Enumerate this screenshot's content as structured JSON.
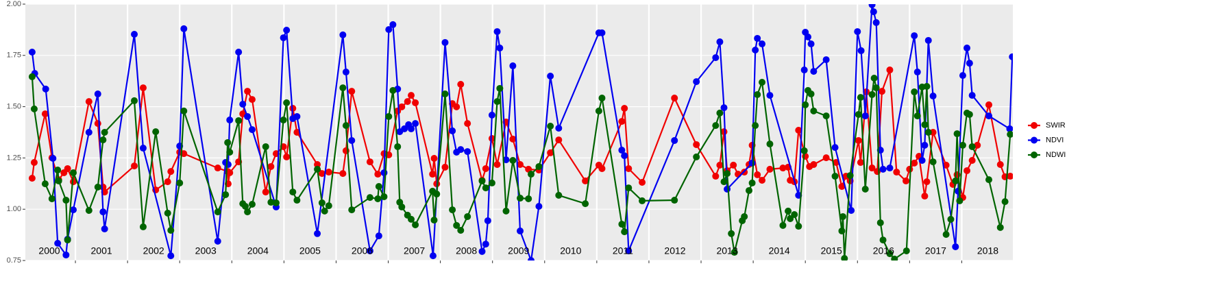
{
  "chart_data": {
    "type": "line",
    "xlim": [
      2000.04,
      2018.98
    ],
    "xticks": [
      2001,
      2002,
      2003,
      2004,
      2005,
      2006,
      2007,
      2008,
      2009,
      2010,
      2011,
      2012,
      2013,
      2014,
      2015,
      2016,
      2017,
      2018
    ],
    "year_labels": [
      "2000",
      "2001",
      "2002",
      "2003",
      "2004",
      "2005",
      "2006",
      "2007",
      "2008",
      "2009",
      "2010",
      "2011",
      "2012",
      "2013",
      "2014",
      "2015",
      "2016",
      "2017",
      "2018"
    ],
    "ylim": [
      0.75,
      2.0
    ],
    "yticks": [
      0.75,
      {
        "value": 1,
        "label": "1.00"
      },
      1.25,
      {
        "value": 1.5,
        "label": "1.50"
      },
      1.75,
      {
        "value": 2,
        "label": "2.00"
      }
    ],
    "grid": true,
    "legend": "right",
    "series": [
      {
        "name": "SWIR",
        "color": "#f00000",
        "x": [
          2000.17,
          2000.21,
          2000.42,
          2000.55,
          2000.68,
          2000.78,
          2000.85,
          2000.96,
          2001.26,
          2001.43,
          2001.53,
          2001.56,
          2002.13,
          2002.3,
          2002.54,
          2002.77,
          2002.83,
          2003.0,
          2003.08,
          2003.73,
          2003.92,
          2003.93,
          2003.96,
          2004.13,
          2004.21,
          2004.3,
          2004.39,
          2004.65,
          2004.75,
          2004.85,
          2004.99,
          2005.05,
          2005.17,
          2005.25,
          2005.64,
          2005.73,
          2005.86,
          2006.13,
          2006.19,
          2006.3,
          2006.65,
          2006.8,
          2006.92,
          2007.01,
          2007.18,
          2007.26,
          2007.37,
          2007.44,
          2007.52,
          2007.85,
          2007.88,
          2007.93,
          2008.09,
          2008.23,
          2008.31,
          2008.39,
          2008.52,
          2008.8,
          2008.87,
          2008.99,
          2009.09,
          2009.26,
          2009.39,
          2009.53,
          2009.69,
          2009.89,
          2010.11,
          2010.27,
          2010.78,
          2011.04,
          2011.1,
          2011.48,
          2011.53,
          2011.61,
          2011.87,
          2012.49,
          2012.91,
          2013.28,
          2013.36,
          2013.44,
          2013.5,
          2013.62,
          2013.71,
          2013.83,
          2013.92,
          2013.98,
          2014.08,
          2014.17,
          2014.32,
          2014.57,
          2014.67,
          2014.71,
          2014.79,
          2014.87,
          2015.0,
          2015.08,
          2015.16,
          2015.4,
          2015.59,
          2015.7,
          2015.78,
          2015.86,
          2016.02,
          2016.06,
          2016.17,
          2016.28,
          2016.38,
          2016.47,
          2016.62,
          2016.75,
          2016.93,
          2017.0,
          2017.09,
          2017.18,
          2017.29,
          2017.33,
          2017.45,
          2017.7,
          2017.83,
          2017.91,
          2018.02,
          2018.1,
          2018.2,
          2018.3,
          2018.52,
          2018.74,
          2018.83,
          2018.93
        ],
        "values": [
          1.151,
          1.228,
          1.465,
          1.251,
          1.144,
          1.178,
          1.198,
          1.134,
          1.525,
          1.418,
          1.108,
          1.084,
          1.211,
          1.592,
          1.094,
          1.134,
          1.184,
          1.278,
          1.271,
          1.201,
          1.184,
          1.124,
          1.178,
          1.231,
          1.465,
          1.575,
          1.535,
          1.084,
          1.208,
          1.271,
          1.305,
          1.255,
          1.492,
          1.375,
          1.218,
          1.174,
          1.181,
          1.174,
          1.285,
          1.575,
          1.231,
          1.171,
          1.271,
          1.265,
          1.479,
          1.499,
          1.525,
          1.555,
          1.519,
          1.171,
          1.248,
          1.124,
          1.205,
          1.515,
          1.499,
          1.609,
          1.418,
          1.141,
          1.198,
          1.345,
          1.218,
          1.425,
          1.342,
          1.218,
          1.195,
          1.191,
          1.275,
          1.338,
          1.138,
          1.215,
          1.198,
          1.428,
          1.492,
          1.198,
          1.131,
          1.542,
          1.315,
          1.161,
          1.215,
          1.378,
          1.188,
          1.215,
          1.171,
          1.181,
          1.218,
          1.312,
          1.168,
          1.141,
          1.195,
          1.201,
          1.205,
          1.141,
          1.134,
          1.385,
          1.258,
          1.208,
          1.218,
          1.251,
          1.228,
          1.111,
          1.161,
          1.138,
          1.335,
          1.228,
          1.572,
          1.201,
          1.184,
          1.575,
          1.679,
          1.181,
          1.138,
          1.195,
          1.225,
          1.258,
          1.064,
          1.134,
          1.375,
          1.215,
          1.121,
          1.168,
          1.057,
          1.188,
          1.238,
          1.312,
          1.509,
          1.218,
          1.158,
          1.161
        ]
      },
      {
        "name": "NDVI",
        "color": "#0000f0",
        "x": [
          2000.17,
          2000.22,
          2000.43,
          2000.57,
          2000.66,
          2000.82,
          2000.85,
          2000.96,
          2001.26,
          2001.43,
          2001.53,
          2001.56,
          2002.13,
          2002.3,
          2002.83,
          2003.0,
          2003.08,
          2003.73,
          2003.88,
          2003.93,
          2003.96,
          2004.13,
          2004.21,
          2004.3,
          2004.39,
          2004.85,
          2004.99,
          2005.05,
          2005.17,
          2005.25,
          2005.64,
          2006.13,
          2006.19,
          2006.3,
          2006.65,
          2006.82,
          2006.92,
          2007.01,
          2007.09,
          2007.18,
          2007.22,
          2007.31,
          2007.39,
          2007.44,
          2007.52,
          2007.86,
          2008.09,
          2008.23,
          2008.31,
          2008.39,
          2008.52,
          2008.8,
          2008.87,
          2008.91,
          2008.99,
          2009.09,
          2009.14,
          2009.26,
          2009.39,
          2009.53,
          2009.74,
          2009.89,
          2010.11,
          2010.27,
          2011.04,
          2011.1,
          2011.48,
          2011.53,
          2011.61,
          2012.49,
          2012.91,
          2013.28,
          2013.36,
          2013.44,
          2013.5,
          2013.98,
          2014.04,
          2014.08,
          2014.17,
          2014.32,
          2014.87,
          2014.98,
          2015.0,
          2015.05,
          2015.11,
          2015.16,
          2015.4,
          2015.57,
          2015.88,
          2016.0,
          2016.07,
          2016.15,
          2016.28,
          2016.31,
          2016.36,
          2016.44,
          2016.49,
          2016.62,
          2017.09,
          2017.15,
          2017.24,
          2017.29,
          2017.36,
          2017.45,
          2017.88,
          2017.93,
          2018.02,
          2018.1,
          2018.15,
          2018.2,
          2018.52,
          2018.92,
          2018.97
        ],
        "values": [
          1.766,
          1.662,
          1.586,
          1.248,
          0.834,
          0.777,
          0.854,
          0.997,
          1.375,
          1.562,
          0.987,
          0.904,
          1.853,
          1.298,
          0.773,
          1.308,
          1.88,
          0.844,
          1.228,
          1.218,
          1.435,
          1.766,
          1.512,
          1.452,
          1.388,
          1.011,
          1.836,
          1.873,
          1.442,
          1.452,
          0.881,
          1.85,
          1.669,
          1.335,
          0.797,
          0.87,
          1.178,
          1.876,
          1.9,
          1.586,
          1.378,
          1.392,
          1.412,
          1.392,
          1.418,
          0.773,
          1.813,
          1.382,
          1.278,
          1.291,
          1.281,
          0.794,
          0.83,
          0.944,
          1.459,
          1.866,
          1.786,
          1.241,
          1.699,
          0.894,
          0.75,
          1.014,
          1.649,
          1.395,
          1.86,
          1.86,
          1.288,
          1.261,
          0.797,
          1.335,
          1.622,
          1.739,
          1.816,
          1.495,
          1.098,
          1.225,
          1.776,
          1.833,
          1.806,
          1.555,
          1.068,
          1.679,
          1.863,
          1.84,
          1.806,
          1.672,
          1.729,
          1.301,
          0.994,
          1.866,
          1.773,
          1.455,
          1.997,
          1.963,
          1.91,
          1.288,
          1.195,
          1.201,
          1.846,
          1.669,
          1.238,
          1.312,
          1.823,
          1.552,
          0.817,
          1.088,
          1.652,
          1.786,
          1.712,
          1.555,
          1.455,
          1.392,
          1.743
        ]
      },
      {
        "name": "NDWI",
        "color": "#006400",
        "x": [
          2000.17,
          2000.21,
          2000.42,
          2000.55,
          2000.66,
          2000.68,
          2000.82,
          2000.85,
          2000.96,
          2001.26,
          2001.43,
          2001.53,
          2001.56,
          2002.13,
          2002.3,
          2002.54,
          2002.77,
          2002.83,
          2003.0,
          2003.08,
          2003.73,
          2003.88,
          2003.92,
          2003.96,
          2004.13,
          2004.21,
          2004.26,
          2004.3,
          2004.39,
          2004.65,
          2004.75,
          2004.85,
          2004.99,
          2005.05,
          2005.17,
          2005.25,
          2005.64,
          2005.73,
          2005.78,
          2005.86,
          2006.13,
          2006.19,
          2006.3,
          2006.65,
          2006.8,
          2006.82,
          2006.92,
          2007.01,
          2007.09,
          2007.18,
          2007.22,
          2007.26,
          2007.37,
          2007.44,
          2007.52,
          2007.85,
          2007.88,
          2007.93,
          2008.09,
          2008.23,
          2008.31,
          2008.39,
          2008.52,
          2008.8,
          2008.87,
          2008.99,
          2009.09,
          2009.14,
          2009.26,
          2009.39,
          2009.53,
          2009.69,
          2009.74,
          2009.89,
          2010.11,
          2010.27,
          2010.78,
          2011.04,
          2011.1,
          2011.48,
          2011.53,
          2011.61,
          2011.87,
          2012.49,
          2012.91,
          2013.28,
          2013.36,
          2013.44,
          2013.5,
          2013.58,
          2013.64,
          2013.79,
          2013.83,
          2013.92,
          2013.98,
          2014.04,
          2014.08,
          2014.17,
          2014.32,
          2014.57,
          2014.67,
          2014.71,
          2014.79,
          2014.87,
          2014.98,
          2015.0,
          2015.05,
          2015.11,
          2015.16,
          2015.4,
          2015.57,
          2015.7,
          2015.72,
          2015.75,
          2015.86,
          2016.02,
          2016.06,
          2016.15,
          2016.28,
          2016.32,
          2016.36,
          2016.44,
          2016.49,
          2016.62,
          2016.71,
          2016.94,
          2017.09,
          2017.15,
          2017.24,
          2017.29,
          2017.33,
          2017.36,
          2017.45,
          2017.7,
          2017.79,
          2017.88,
          2017.91,
          2017.96,
          2018.02,
          2018.1,
          2018.15,
          2018.2,
          2018.52,
          2018.74,
          2018.83,
          2018.93
        ],
        "values": [
          1.646,
          1.489,
          1.124,
          1.051,
          1.191,
          1.138,
          1.044,
          0.85,
          1.178,
          0.994,
          1.108,
          1.338,
          1.375,
          1.529,
          0.914,
          1.378,
          0.981,
          0.897,
          1.128,
          1.479,
          0.987,
          1.071,
          1.325,
          1.278,
          1.432,
          1.027,
          1.014,
          0.987,
          1.024,
          1.305,
          1.034,
          1.031,
          1.435,
          1.519,
          1.084,
          1.044,
          1.195,
          1.031,
          0.991,
          1.017,
          1.592,
          1.408,
          0.997,
          1.057,
          1.051,
          1.111,
          1.061,
          1.452,
          1.579,
          1.305,
          1.034,
          1.011,
          0.971,
          0.951,
          0.924,
          1.088,
          0.947,
          1.074,
          1.562,
          0.997,
          0.921,
          0.897,
          0.964,
          1.138,
          1.104,
          1.128,
          1.525,
          1.589,
          0.991,
          1.238,
          1.054,
          1.051,
          1.171,
          1.208,
          1.405,
          1.068,
          1.027,
          1.479,
          1.542,
          0.927,
          0.89,
          1.104,
          1.041,
          1.044,
          1.255,
          1.408,
          1.469,
          1.134,
          1.174,
          0.881,
          0.79,
          0.944,
          0.964,
          1.091,
          1.128,
          1.408,
          1.559,
          1.619,
          1.318,
          0.921,
          0.991,
          0.954,
          0.974,
          0.917,
          1.285,
          1.509,
          1.579,
          1.562,
          1.479,
          1.455,
          1.161,
          0.894,
          0.964,
          0.76,
          1.164,
          1.462,
          1.545,
          1.098,
          1.559,
          1.639,
          1.592,
          0.934,
          0.85,
          0.783,
          0.757,
          0.797,
          1.572,
          1.455,
          1.596,
          1.412,
          1.599,
          1.375,
          1.231,
          0.877,
          0.951,
          1.138,
          1.368,
          1.041,
          1.312,
          1.469,
          1.462,
          1.305,
          1.144,
          0.911,
          1.037,
          1.365
        ]
      }
    ]
  }
}
